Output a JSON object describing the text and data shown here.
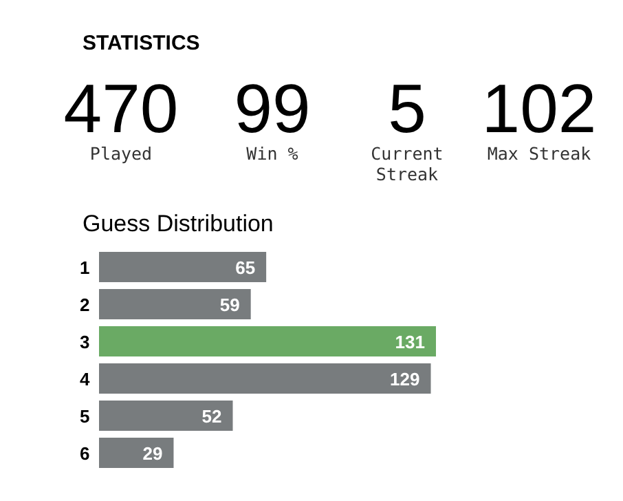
{
  "chart_data": [
    {
      "type": "other",
      "title": "STATISTICS",
      "categories": [
        "Played",
        "Win %",
        "Current Streak",
        "Max Streak"
      ],
      "values": [
        470,
        99,
        5,
        102
      ],
      "data_labels": true
    },
    {
      "type": "bar",
      "title": "Guess Distribution",
      "orientation": "horizontal",
      "categories": [
        "1",
        "2",
        "3",
        "4",
        "5",
        "6"
      ],
      "values": [
        65,
        59,
        131,
        129,
        52,
        29
      ],
      "colors": [
        "#787c7e",
        "#787c7e",
        "#6aaa64",
        "#787c7e",
        "#787c7e",
        "#787c7e"
      ],
      "data_labels": true
    }
  ]
}
